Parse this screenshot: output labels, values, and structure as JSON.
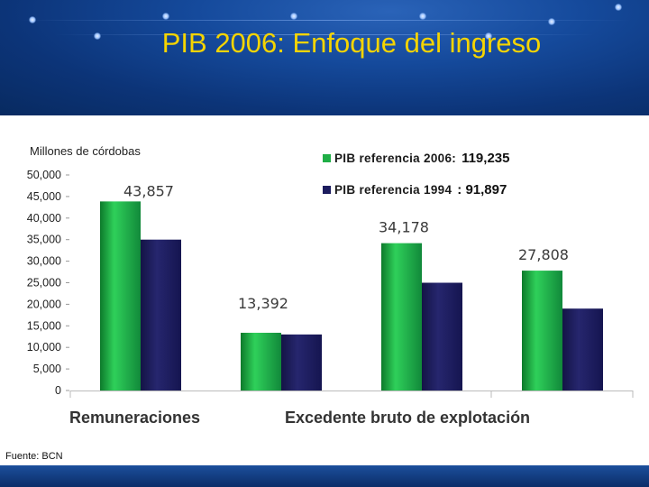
{
  "title": "PIB 2006: Enfoque del ingreso",
  "units_label": "Millones de córdobas",
  "source": "Fuente: BCN",
  "legend": [
    {
      "label": "PIB referencia  2006:",
      "total": "119,235",
      "color": "#1fae46"
    },
    {
      "label": "PIB referencia  1994",
      "total": ":  91,897",
      "color": "#1c1c5e"
    }
  ],
  "colors": {
    "green": "#1fae46",
    "navy": "#1c1c5e",
    "header": "#154a9c",
    "title": "#f5d400"
  },
  "chart_data": {
    "type": "bar",
    "title": "PIB 2006: Enfoque del ingreso",
    "ylabel": "Millones de córdobas",
    "ylim": [
      0,
      50000
    ],
    "yticks": [
      "0",
      "5,000",
      "10,000",
      "15,000",
      "20,000",
      "25,000",
      "30,000",
      "35,000",
      "40,000",
      "45,000",
      "50,000"
    ],
    "groups": [
      "Remuneraciones",
      "Excedente bruto de explotación"
    ],
    "categories": [
      "",
      "",
      "",
      ""
    ],
    "series": [
      {
        "name": "PIB referencia 2006",
        "values": [
          43857,
          13392,
          34178,
          27808
        ],
        "labels": [
          "43,857",
          "13,392",
          "34,178",
          "27,808"
        ]
      },
      {
        "name": "PIB referencia 1994",
        "values": [
          35000,
          13000,
          25000,
          19000
        ]
      }
    ],
    "grid": false,
    "legend_position": "top-right"
  }
}
